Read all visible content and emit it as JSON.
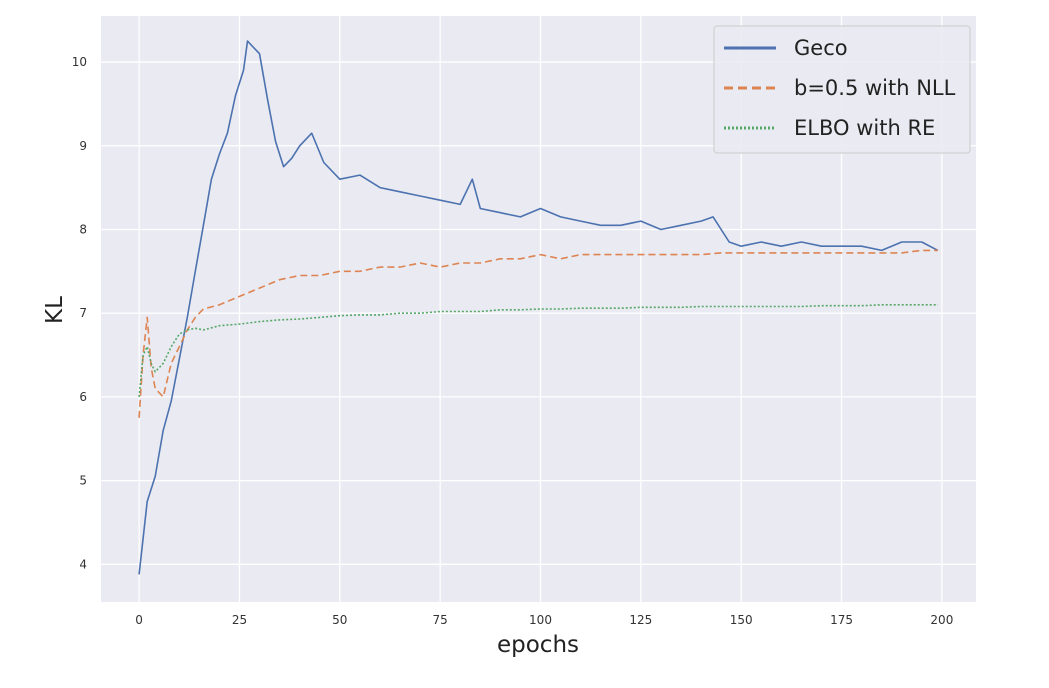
{
  "chart_data": {
    "type": "line",
    "title": "",
    "xlabel": "epochs",
    "ylabel": "KL",
    "xlim": [
      -9.5,
      208.5
    ],
    "ylim": [
      3.55,
      10.55
    ],
    "xticks": [
      0,
      25,
      50,
      75,
      100,
      125,
      150,
      175,
      200
    ],
    "yticks": [
      4,
      5,
      6,
      7,
      8,
      9,
      10
    ],
    "grid": true,
    "legend_position": "top-right",
    "background": "#eaeaf2",
    "series": [
      {
        "name": "Geco",
        "color": "#4c72b0",
        "style": "solid",
        "x": [
          0,
          2,
          4,
          6,
          8,
          10,
          12,
          14,
          16,
          18,
          20,
          22,
          24,
          26,
          27,
          28,
          30,
          32,
          34,
          36,
          38,
          40,
          43,
          46,
          50,
          55,
          60,
          65,
          70,
          75,
          80,
          83,
          85,
          90,
          95,
          100,
          105,
          110,
          115,
          120,
          125,
          130,
          135,
          140,
          143,
          147,
          150,
          155,
          160,
          165,
          170,
          175,
          180,
          185,
          190,
          195,
          199
        ],
        "y": [
          3.88,
          4.75,
          5.05,
          5.6,
          5.95,
          6.45,
          6.95,
          7.5,
          8.05,
          8.6,
          8.9,
          9.15,
          9.6,
          9.9,
          10.25,
          10.2,
          10.1,
          9.55,
          9.05,
          8.75,
          8.85,
          9.0,
          9.15,
          8.8,
          8.6,
          8.65,
          8.5,
          8.45,
          8.4,
          8.35,
          8.3,
          8.6,
          8.25,
          8.2,
          8.15,
          8.25,
          8.15,
          8.1,
          8.05,
          8.05,
          8.1,
          8.0,
          8.05,
          8.1,
          8.15,
          7.85,
          7.8,
          7.85,
          7.8,
          7.85,
          7.8,
          7.8,
          7.8,
          7.75,
          7.85,
          7.85,
          7.75
        ]
      },
      {
        "name": "b=0.5 with NLL",
        "color": "#dd8452",
        "style": "dashed",
        "x": [
          0,
          1,
          2,
          3,
          4,
          6,
          8,
          10,
          12,
          14,
          16,
          20,
          25,
          30,
          35,
          40,
          45,
          50,
          55,
          60,
          65,
          70,
          75,
          80,
          85,
          90,
          95,
          100,
          105,
          110,
          115,
          120,
          125,
          130,
          135,
          140,
          145,
          150,
          155,
          160,
          165,
          170,
          175,
          180,
          185,
          190,
          195,
          199
        ],
        "y": [
          5.75,
          6.5,
          6.95,
          6.35,
          6.1,
          6.0,
          6.4,
          6.6,
          6.8,
          6.95,
          7.05,
          7.1,
          7.2,
          7.3,
          7.4,
          7.45,
          7.45,
          7.5,
          7.5,
          7.55,
          7.55,
          7.6,
          7.55,
          7.6,
          7.6,
          7.65,
          7.65,
          7.7,
          7.65,
          7.7,
          7.7,
          7.7,
          7.7,
          7.7,
          7.7,
          7.7,
          7.72,
          7.72,
          7.72,
          7.72,
          7.72,
          7.72,
          7.72,
          7.72,
          7.72,
          7.72,
          7.75,
          7.75
        ]
      },
      {
        "name": "ELBO with RE",
        "color": "#55a868",
        "style": "dotted",
        "x": [
          0,
          1,
          2,
          3,
          4,
          6,
          8,
          10,
          12,
          14,
          16,
          20,
          25,
          30,
          35,
          40,
          45,
          50,
          55,
          60,
          65,
          70,
          75,
          80,
          85,
          90,
          95,
          100,
          105,
          110,
          115,
          120,
          125,
          130,
          135,
          140,
          145,
          150,
          155,
          160,
          165,
          170,
          175,
          180,
          185,
          190,
          195,
          199
        ],
        "y": [
          6.0,
          6.5,
          6.6,
          6.4,
          6.3,
          6.4,
          6.6,
          6.75,
          6.8,
          6.82,
          6.8,
          6.85,
          6.87,
          6.9,
          6.92,
          6.93,
          6.95,
          6.97,
          6.98,
          6.98,
          7.0,
          7.0,
          7.02,
          7.02,
          7.02,
          7.04,
          7.04,
          7.05,
          7.05,
          7.06,
          7.06,
          7.06,
          7.07,
          7.07,
          7.07,
          7.08,
          7.08,
          7.08,
          7.08,
          7.08,
          7.08,
          7.09,
          7.09,
          7.09,
          7.1,
          7.1,
          7.1,
          7.1
        ]
      }
    ]
  }
}
